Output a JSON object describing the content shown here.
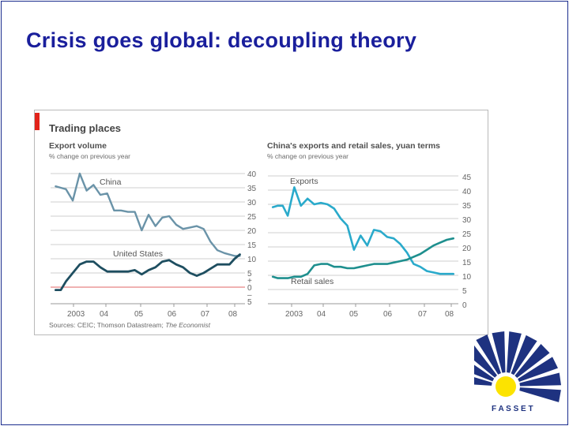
{
  "slide": {
    "title": "Crisis goes global: decoupling theory"
  },
  "figure": {
    "title": "Trading places",
    "source": {
      "prefix": "Sources: CEIC; Thomson Datastream; ",
      "emphasis": "The Economist"
    }
  },
  "chart_data": [
    {
      "type": "line",
      "title": "Export volume",
      "ylabel": "% change on previous year",
      "ylim": [
        -5,
        40
      ],
      "yticks": [
        "40",
        "35",
        "30",
        "25",
        "20",
        "15",
        "10",
        "5",
        "+",
        "0",
        "–",
        "5"
      ],
      "xticks": [
        "2003",
        "04",
        "05",
        "06",
        "07",
        "08"
      ],
      "baseline": 0,
      "series": [
        {
          "name": "China",
          "color": "#6a93a8",
          "x": [
            2002.85,
            2003.0,
            2003.15,
            2003.35,
            2003.55,
            2003.75,
            2003.95,
            2004.15,
            2004.35,
            2004.55,
            2004.75,
            2004.95,
            2005.15,
            2005.35,
            2005.55,
            2005.75,
            2005.95,
            2006.15,
            2006.35,
            2006.55,
            2006.75,
            2006.95,
            2007.15,
            2007.35,
            2007.55,
            2007.75,
            2007.9,
            2008.05,
            2008.2
          ],
          "values": [
            35.5,
            35,
            34.5,
            30.5,
            40,
            34,
            36,
            32.5,
            33,
            27,
            27,
            26.5,
            26.5,
            20,
            25.5,
            21.5,
            24.5,
            25,
            22,
            20.5,
            21,
            21.5,
            20.5,
            16,
            13,
            12,
            11.5,
            11,
            11
          ]
        },
        {
          "name": "United States",
          "color": "#1e4e60",
          "x": [
            2002.85,
            2003.0,
            2003.15,
            2003.35,
            2003.55,
            2003.75,
            2003.95,
            2004.15,
            2004.35,
            2004.55,
            2004.75,
            2004.95,
            2005.15,
            2005.35,
            2005.55,
            2005.75,
            2005.95,
            2006.15,
            2006.35,
            2006.55,
            2006.75,
            2006.95,
            2007.15,
            2007.35,
            2007.55,
            2007.75,
            2007.9,
            2008.05,
            2008.2
          ],
          "values": [
            -1,
            -1,
            2,
            5,
            8,
            9,
            9,
            7,
            5.5,
            5.5,
            5.5,
            5.5,
            6,
            4.5,
            6,
            7,
            9,
            9.5,
            8,
            7,
            5,
            4,
            5,
            6.5,
            8,
            8,
            8,
            10,
            11.5
          ]
        }
      ],
      "annotations": [
        {
          "text": "China",
          "series": "China"
        },
        {
          "text": "United States",
          "series": "United States"
        }
      ]
    },
    {
      "type": "line",
      "title": "China's exports and retail sales, yuan terms",
      "ylabel": "% change on previous year",
      "ylim": [
        0,
        45
      ],
      "yticks": [
        "45",
        "40",
        "35",
        "30",
        "25",
        "20",
        "15",
        "10",
        "5",
        "0"
      ],
      "xticks": [
        "2003",
        "04",
        "05",
        "06",
        "07",
        "08"
      ],
      "series": [
        {
          "name": "Exports",
          "color": "#2aaacb",
          "x": [
            2002.7,
            2002.85,
            2003.0,
            2003.15,
            2003.35,
            2003.55,
            2003.75,
            2003.95,
            2004.15,
            2004.35,
            2004.55,
            2004.75,
            2004.95,
            2005.15,
            2005.35,
            2005.55,
            2005.75,
            2005.95,
            2006.15,
            2006.35,
            2006.55,
            2006.75,
            2006.95,
            2007.15,
            2007.35,
            2007.55,
            2007.75,
            2007.95,
            2008.15
          ],
          "values": [
            34,
            34.5,
            34.5,
            31,
            41,
            34.5,
            37,
            35,
            35.5,
            35,
            33.5,
            30,
            27.5,
            19,
            24,
            20.5,
            26,
            25.5,
            23.5,
            23,
            21,
            18,
            14,
            13,
            11.5,
            11,
            10.5,
            10.5,
            10.5
          ]
        },
        {
          "name": "Retail sales",
          "color": "#1e8f8e",
          "x": [
            2002.7,
            2002.85,
            2003.0,
            2003.15,
            2003.35,
            2003.55,
            2003.75,
            2003.95,
            2004.15,
            2004.35,
            2004.55,
            2004.75,
            2004.95,
            2005.15,
            2005.35,
            2005.55,
            2005.75,
            2005.95,
            2006.15,
            2006.35,
            2006.55,
            2006.75,
            2006.95,
            2007.15,
            2007.35,
            2007.55,
            2007.75,
            2007.95,
            2008.15
          ],
          "values": [
            9.5,
            9,
            9,
            9,
            9.5,
            9.5,
            10.5,
            13.5,
            14,
            14,
            13,
            13,
            12.5,
            12.5,
            13,
            13.5,
            14,
            14,
            14,
            14.5,
            15,
            15.5,
            16.5,
            17.5,
            19,
            20.5,
            21.5,
            22.5,
            23
          ]
        }
      ],
      "annotations": [
        {
          "text": "Exports",
          "series": "Exports"
        },
        {
          "text": "Retail sales",
          "series": "Retail sales"
        }
      ]
    }
  ],
  "logo": {
    "text": "F A S S E T",
    "colors": {
      "sun": "#fce300",
      "rays": "#1e3280"
    }
  },
  "colors": {
    "title": "#1a1f9c",
    "accent_bar": "#e2231a",
    "gridline": "#cfcfcf",
    "zero_line": "#e06666"
  }
}
